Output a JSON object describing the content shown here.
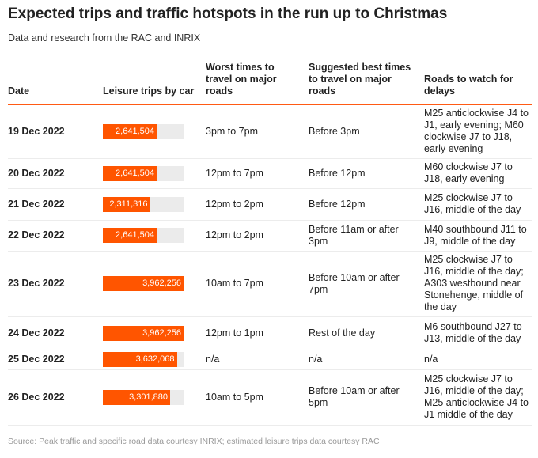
{
  "title": "Expected trips and traffic hotspots in the run up to Christmas",
  "subtitle": "Data and research from the RAC and INRIX",
  "source": "Source: Peak traffic and specific road data courtesy INRIX; estimated leisure trips data courtesy RAC",
  "colors": {
    "bar": "#ff5500",
    "track": "#ebebeb",
    "rule": "#ff5a14"
  },
  "chart_data": {
    "type": "table",
    "columns": [
      "Date",
      "Leisure trips by car",
      "Worst times to travel on major roads",
      "Suggested best times to travel on major roads",
      "Roads to watch for delays"
    ],
    "bar_max": 3962256,
    "rows": [
      {
        "date": "19 Dec 2022",
        "trips": 2641504,
        "trips_label": "2,641,504",
        "worst": "3pm to 7pm",
        "best": "Before 3pm",
        "roads": "M25 anticlockwise J4 to J1, early evening; M60 clockwise J7 to J18, early evening",
        "h": 68
      },
      {
        "date": "20 Dec 2022",
        "trips": 2641504,
        "trips_label": "2,641,504",
        "worst": "12pm to 7pm",
        "best": "Before 12pm",
        "roads": "M60 clockwise J7 to J18, early evening",
        "h": 38
      },
      {
        "date": "21 Dec 2022",
        "trips": 2311316,
        "trips_label": "2,311,316",
        "worst": "12pm to 2pm",
        "best": "Before 12pm",
        "roads": "M25 clockwise J7 to J16, middle of the day",
        "h": 40
      },
      {
        "date": "22 Dec 2022",
        "trips": 2641504,
        "trips_label": "2,641,504",
        "worst": "12pm to 2pm",
        "best": "Before 11am or after 3pm",
        "roads": "M40 southbound J11 to J9, middle of the day",
        "h": 39
      },
      {
        "date": "23 Dec 2022",
        "trips": 3962256,
        "trips_label": "3,962,256",
        "worst": "10am to 7pm",
        "best": "Before 10am or after 7pm",
        "roads": "M25 clockwise J7 to J16, middle of the day; A303 westbound near Stonehenge, middle of the day",
        "h": 83
      },
      {
        "date": "24 Dec 2022",
        "trips": 3962256,
        "trips_label": "3,962,256",
        "worst": "12pm to 1pm",
        "best": "Rest of the day",
        "roads": "M6 southbound J27 to J13, middle of the day",
        "h": 42
      },
      {
        "date": "25 Dec 2022",
        "trips": 3632068,
        "trips_label": "3,632,068",
        "worst": "n/a",
        "best": "n/a",
        "roads": "n/a",
        "h": 25
      },
      {
        "date": "26 Dec 2022",
        "trips": 3301880,
        "trips_label": "3,301,880",
        "worst": "10am to 5pm",
        "best": "Before 10am or after 5pm",
        "roads": "M25 clockwise J7 to J16, middle of the day; M25 anticlockwise J4 to J1 middle of the day",
        "h": 70
      }
    ]
  }
}
